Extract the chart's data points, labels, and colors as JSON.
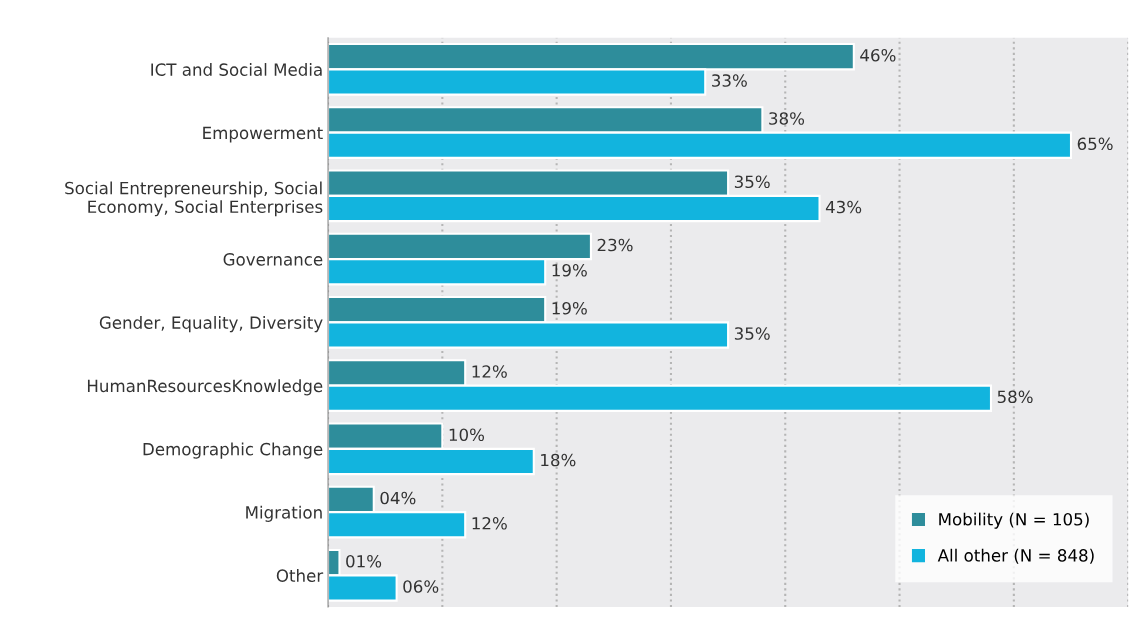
{
  "chart_data": {
    "type": "bar",
    "orientation": "horizontal",
    "categories": [
      "ICT and Social Media",
      "Empowerment",
      "Social Entrepreneurship, Social\nEconomy, Social Enterprises",
      "Governance",
      "Gender, Equality, Diversity",
      "HumanResourcesKnowledge",
      "Demographic Change",
      "Migration",
      "Other"
    ],
    "series": [
      {
        "name": "Mobility (N = 105)",
        "color": "#2e8d9b",
        "values": [
          46,
          38,
          35,
          23,
          19,
          12,
          10,
          4,
          1
        ],
        "value_labels": [
          "46%",
          "38%",
          "35%",
          "23%",
          "19%",
          "12%",
          "10%",
          "04%",
          "01%"
        ]
      },
      {
        "name": "All other (N = 848)",
        "color": "#12b4de",
        "values": [
          33,
          65,
          43,
          19,
          35,
          58,
          18,
          12,
          6
        ],
        "value_labels": [
          "33%",
          "65%",
          "43%",
          "19%",
          "35%",
          "58%",
          "18%",
          "12%",
          "06%"
        ]
      }
    ],
    "xlim": [
      0,
      70
    ],
    "xticks": [
      {
        "value": 0,
        "label": null
      },
      {
        "value": 10,
        "label": null
      },
      {
        "value": 20,
        "label": null
      },
      {
        "value": 30,
        "label": null
      },
      {
        "value": 40,
        "label": null
      },
      {
        "value": 50,
        "label": null
      },
      {
        "value": 60,
        "label": null
      },
      {
        "value": 70,
        "label": null
      }
    ],
    "tick_labels": "y",
    "grid": "x",
    "legend": "bottom right"
  }
}
